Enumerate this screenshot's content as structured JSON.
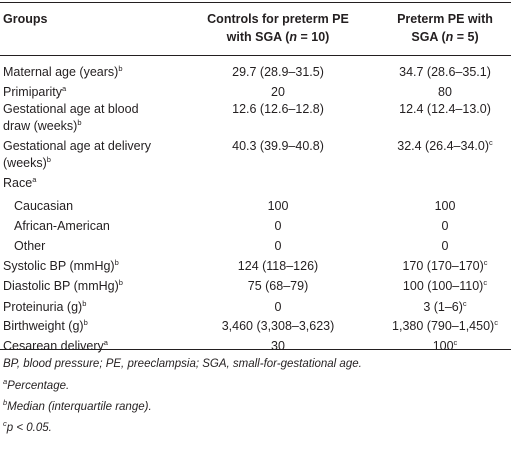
{
  "header": {
    "groups": "Groups",
    "col1_line1": "Controls for preterm PE",
    "col1_line2a": "with SGA (",
    "col1_n": "n",
    "col1_line2b": " = 10)",
    "col2_line1": "Preterm PE with",
    "col2_line2a": "SGA (",
    "col2_n": "n",
    "col2_line2b": " = 5)"
  },
  "rows": [
    {
      "label": "Maternal age (years)",
      "sup": "b",
      "v1": "29.7 (28.9–31.5)",
      "v2": "34.7 (28.6–35.1)",
      "v2sup": ""
    },
    {
      "label": "Primiparity",
      "sup": "a",
      "v1": "20",
      "v2": "80",
      "v2sup": ""
    },
    {
      "label": "Gestational age at blood",
      "label2": "draw (weeks)",
      "sup": "b",
      "v1": "12.6 (12.6–12.8)",
      "v2": "12.4 (12.4–13.0)",
      "v2sup": ""
    },
    {
      "label": "Gestational age at delivery",
      "label2": "(weeks)",
      "sup": "b",
      "v1": "40.3 (39.9–40.8)",
      "v2": "32.4 (26.4–34.0)",
      "v2sup": "c"
    },
    {
      "label": "Race",
      "sup": "a",
      "v1": "",
      "v2": "",
      "v2sup": ""
    },
    {
      "label": "Caucasian",
      "sup": "",
      "v1": "100",
      "v2": "100",
      "v2sup": ""
    },
    {
      "label": "African-American",
      "sup": "",
      "v1": "0",
      "v2": "0",
      "v2sup": ""
    },
    {
      "label": "Other",
      "sup": "",
      "v1": "0",
      "v2": "0",
      "v2sup": ""
    },
    {
      "label": "Systolic BP (mmHg)",
      "sup": "b",
      "v1": "124 (118–126)",
      "v2": "170 (170–170)",
      "v2sup": "c"
    },
    {
      "label": "Diastolic BP (mmHg)",
      "sup": "b",
      "v1": "75 (68–79)",
      "v2": "100 (100–110)",
      "v2sup": "c"
    },
    {
      "label": "Proteinuria (g)",
      "sup": "b",
      "v1": "0",
      "v2": "3 (1–6)",
      "v2sup": "c"
    },
    {
      "label": "Birthweight (g)",
      "sup": "b",
      "v1": "3,460 (3,308–3,623)",
      "v2": "1,380 (790–1,450)",
      "v2sup": "c"
    },
    {
      "label": "Cesarean delivery",
      "sup": "a",
      "v1": "30",
      "v2": "100",
      "v2sup": "c"
    }
  ],
  "footnotes": {
    "abbrev": "BP, blood pressure; PE, preeclampsia; SGA, small-for-gestational age.",
    "a_mark": "a",
    "a_text": "Percentage.",
    "b_mark": "b",
    "b_text": "Median (interquartile range).",
    "c_mark": "c",
    "c_text": "p < 0.05."
  }
}
